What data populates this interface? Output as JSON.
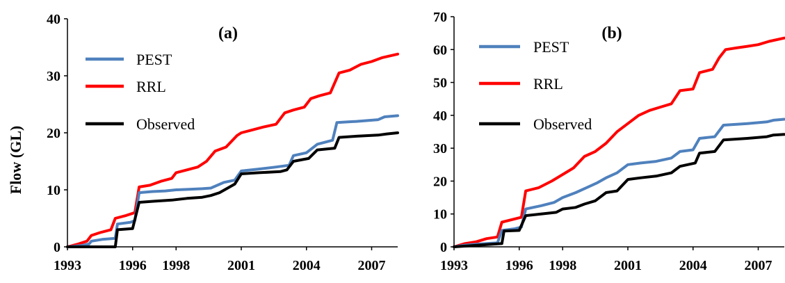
{
  "chart_data": [
    {
      "type": "line",
      "title": "(a)",
      "xlabel": "",
      "ylabel": "Flow (GL)",
      "xlim": [
        1993,
        2008.2
      ],
      "ylim": [
        0,
        40
      ],
      "xticks": [
        "1993",
        "1996",
        "1998",
        "2001",
        "2004",
        "2007"
      ],
      "yticks": [
        "0",
        "10",
        "20",
        "30",
        "40"
      ],
      "legend_position": "top-left",
      "series": [
        {
          "name": "PEST",
          "color": "#4f81bd",
          "x": [
            1993.0,
            1993.6,
            1994.0,
            1994.1,
            1994.6,
            1995.2,
            1995.3,
            1995.9,
            1996.1,
            1996.3,
            1996.9,
            1997.5,
            1998.0,
            1998.6,
            1999.2,
            1999.6,
            2000.2,
            2000.7,
            2001.0,
            2001.7,
            2002.6,
            2003.2,
            2003.4,
            2004.0,
            2004.5,
            2005.2,
            2005.4,
            2006.3,
            2007.3,
            2007.6,
            2008.2
          ],
          "y": [
            0,
            0.2,
            0.5,
            1.0,
            1.3,
            1.5,
            4.0,
            4.3,
            4.6,
            9.5,
            9.7,
            9.8,
            10.0,
            10.1,
            10.2,
            10.3,
            11.3,
            11.7,
            13.3,
            13.6,
            14.0,
            14.3,
            16.0,
            16.5,
            18.0,
            18.7,
            21.8,
            22.0,
            22.3,
            22.8,
            23.0
          ]
        },
        {
          "name": "RRL",
          "color": "#ff0000",
          "x": [
            1993.0,
            1993.5,
            1993.9,
            1994.1,
            1994.5,
            1995.0,
            1995.2,
            1995.7,
            1996.1,
            1996.3,
            1996.8,
            1997.3,
            1997.8,
            1998.0,
            1998.5,
            1999.0,
            1999.4,
            1999.8,
            2000.3,
            2000.8,
            2001.0,
            2001.5,
            2002.0,
            2002.6,
            2003.0,
            2003.4,
            2003.9,
            2004.2,
            2004.6,
            2005.1,
            2005.5,
            2006.0,
            2006.5,
            2007.0,
            2007.5,
            2008.2
          ],
          "y": [
            0,
            0.5,
            1.0,
            2.0,
            2.5,
            3.0,
            5.0,
            5.5,
            6.0,
            10.5,
            10.8,
            11.5,
            12.0,
            13.0,
            13.5,
            14.0,
            15.0,
            16.8,
            17.5,
            19.5,
            20.0,
            20.5,
            21.0,
            21.5,
            23.5,
            24.0,
            24.5,
            26.0,
            26.5,
            27.0,
            30.5,
            31.0,
            32.0,
            32.5,
            33.2,
            33.8
          ]
        },
        {
          "name": "Observed",
          "color": "#000000",
          "x": [
            1993.0,
            1995.2,
            1995.3,
            1996.0,
            1996.3,
            1997.0,
            1997.8,
            1998.5,
            1999.2,
            1999.6,
            2000.0,
            2000.7,
            2001.0,
            2001.8,
            2002.8,
            2003.1,
            2003.4,
            2004.1,
            2004.5,
            2005.3,
            2005.5,
            2006.3,
            2007.3,
            2007.7,
            2008.2
          ],
          "y": [
            0,
            0,
            3.0,
            3.2,
            7.8,
            8.0,
            8.2,
            8.5,
            8.7,
            9.0,
            9.5,
            11.0,
            12.8,
            13.0,
            13.2,
            13.5,
            15.0,
            15.5,
            17.0,
            17.3,
            19.2,
            19.4,
            19.6,
            19.8,
            20.0
          ]
        }
      ]
    },
    {
      "type": "line",
      "title": "(b)",
      "xlabel": "",
      "ylabel": "",
      "xlim": [
        1993,
        2008.2
      ],
      "ylim": [
        0,
        70
      ],
      "xticks": [
        "1993",
        "1996",
        "1998",
        "2001",
        "2004",
        "2007"
      ],
      "yticks": [
        "0",
        "10",
        "20",
        "30",
        "40",
        "50",
        "60",
        "70"
      ],
      "legend_position": "top-left",
      "series": [
        {
          "name": "PEST",
          "color": "#4f81bd",
          "x": [
            1993.0,
            1993.5,
            1994.0,
            1994.5,
            1995.0,
            1995.2,
            1995.8,
            1996.1,
            1996.3,
            1997.0,
            1997.6,
            1998.0,
            1998.6,
            1999.1,
            1999.6,
            2000.0,
            2000.5,
            2001.0,
            2001.6,
            2002.3,
            2003.0,
            2003.4,
            2004.0,
            2004.3,
            2005.0,
            2005.4,
            2006.5,
            2007.4,
            2007.7,
            2008.2
          ],
          "y": [
            0,
            0.5,
            0.8,
            1.0,
            1.2,
            5.0,
            5.5,
            6.0,
            11.5,
            12.5,
            13.5,
            15.0,
            16.5,
            18.0,
            19.5,
            21.0,
            22.5,
            25.0,
            25.5,
            26.0,
            27.0,
            29.0,
            29.5,
            33.0,
            33.5,
            37.0,
            37.5,
            38.0,
            38.5,
            38.8
          ]
        },
        {
          "name": "RRL",
          "color": "#ff0000",
          "x": [
            1993.0,
            1993.5,
            1994.0,
            1994.5,
            1995.0,
            1995.2,
            1995.8,
            1996.1,
            1996.3,
            1996.9,
            1997.5,
            1998.0,
            1998.5,
            1999.0,
            1999.5,
            2000.0,
            2000.5,
            2001.0,
            2001.5,
            2002.0,
            2002.5,
            2003.0,
            2003.4,
            2004.0,
            2004.3,
            2004.9,
            2005.2,
            2005.5,
            2006.0,
            2006.5,
            2007.0,
            2007.5,
            2008.2
          ],
          "y": [
            0,
            1.0,
            1.5,
            2.5,
            3.0,
            7.5,
            8.5,
            9.0,
            17.0,
            18.0,
            20.0,
            22.0,
            24.0,
            27.5,
            29.0,
            31.5,
            35.0,
            37.5,
            40.0,
            41.5,
            42.5,
            43.5,
            47.5,
            48.0,
            53.0,
            54.0,
            57.5,
            60.0,
            60.5,
            61.0,
            61.5,
            62.5,
            63.5
          ]
        },
        {
          "name": "Observed",
          "color": "#000000",
          "x": [
            1993.0,
            1995.2,
            1995.3,
            1996.0,
            1996.3,
            1997.0,
            1997.7,
            1998.0,
            1998.6,
            1999.0,
            1999.5,
            2000.0,
            2000.5,
            2001.0,
            2001.6,
            2002.3,
            2003.0,
            2003.4,
            2004.1,
            2004.3,
            2005.0,
            2005.4,
            2006.5,
            2007.4,
            2007.7,
            2008.2
          ],
          "y": [
            0,
            1.0,
            4.8,
            5.0,
            9.5,
            10.0,
            10.5,
            11.5,
            12.0,
            13.0,
            14.0,
            16.5,
            17.0,
            20.5,
            21.0,
            21.5,
            22.5,
            24.5,
            25.5,
            28.5,
            29.0,
            32.5,
            33.0,
            33.5,
            34.0,
            34.2
          ]
        }
      ]
    }
  ]
}
